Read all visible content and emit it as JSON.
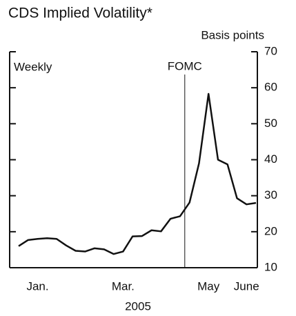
{
  "chart_data": {
    "type": "line",
    "title": "CDS Implied Volatility*",
    "y_axis_label": "Basis points",
    "annotation": "Weekly",
    "event_label": "FOMC",
    "x_axis_label": "2005",
    "categories": [
      null,
      null,
      "Jan.",
      null,
      null,
      null,
      null,
      null,
      null,
      null,
      null,
      "Mar.",
      null,
      null,
      null,
      null,
      null,
      null,
      null,
      null,
      "May",
      null,
      null,
      null,
      "June",
      null
    ],
    "series": [
      {
        "name": "CDS implied volatility",
        "color": "#111111",
        "values": [
          16,
          17.7,
          18,
          18.2,
          18,
          16.2,
          14.7,
          14.5,
          15.4,
          15.1,
          13.8,
          14.5,
          18.7,
          18.8,
          20.4,
          20.1,
          23.6,
          24.3,
          28.1,
          39,
          58.3,
          40,
          38.7,
          29.3,
          27.6,
          28
        ]
      }
    ],
    "ylim": [
      10,
      70
    ],
    "yticks": [
      10,
      20,
      30,
      40,
      50,
      60,
      70
    ],
    "grid": false
  }
}
